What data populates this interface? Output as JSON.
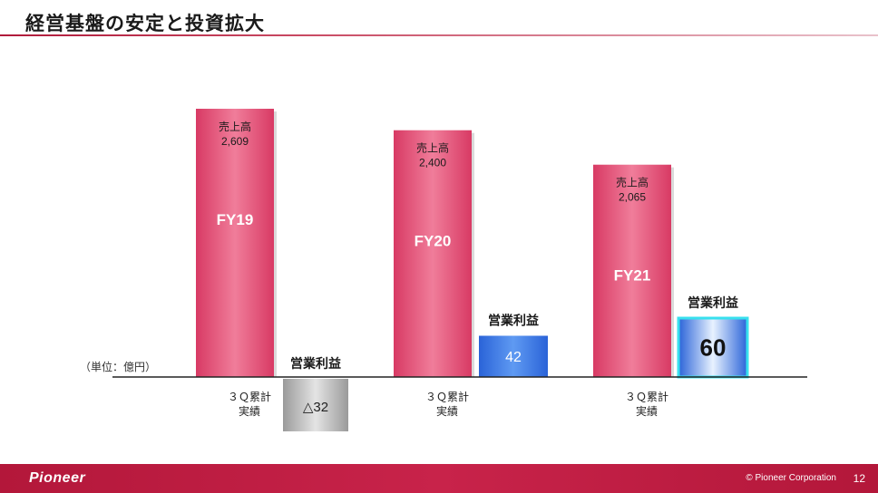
{
  "title": "経営基盤の安定と投資拡大",
  "unit_label": "（単位：億円）",
  "footer": {
    "logo": "Pioneer",
    "copyright": "© Pioneer Corporation",
    "page": "12"
  },
  "colors": {
    "sales": "#e04a72",
    "profit_positive": "#2f6fe0",
    "profit_negative": "#a9a9a9",
    "brand": "#b3173a"
  },
  "chart_data": {
    "type": "bar",
    "categories": [
      "FY19",
      "FY20",
      "FY21"
    ],
    "category_sublabel": [
      "３Ｑ累計",
      "実績"
    ],
    "series": [
      {
        "name": "売上高",
        "values": [
          2609,
          2400,
          2065
        ],
        "value_labels": [
          "2,609",
          "2,400",
          "2,065"
        ]
      },
      {
        "name": "営業利益",
        "values": [
          -32,
          42,
          60
        ],
        "value_labels": [
          "△32",
          "42",
          "60"
        ]
      }
    ]
  }
}
